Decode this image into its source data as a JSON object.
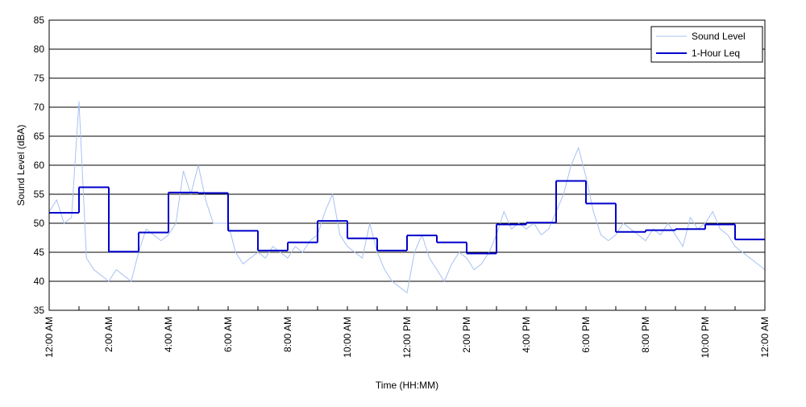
{
  "chart_data": {
    "type": "line",
    "ylabel": "Sound Level (dBA)",
    "xlabel": "Time (HH:MM)",
    "xlim": [
      0,
      24
    ],
    "ylim": [
      35,
      85
    ],
    "yticks": [
      35,
      40,
      45,
      50,
      55,
      60,
      65,
      70,
      75,
      80,
      85
    ],
    "xticks": [
      {
        "value": 0,
        "label": "12:00 AM"
      },
      {
        "value": 2,
        "label": "2:00 AM"
      },
      {
        "value": 4,
        "label": "4:00 AM"
      },
      {
        "value": 6,
        "label": "6:00 AM"
      },
      {
        "value": 8,
        "label": "8:00 AM"
      },
      {
        "value": 10,
        "label": "10:00 AM"
      },
      {
        "value": 12,
        "label": "12:00 PM"
      },
      {
        "value": 14,
        "label": "2:00 PM"
      },
      {
        "value": 16,
        "label": "4:00 PM"
      },
      {
        "value": 18,
        "label": "6:00 PM"
      },
      {
        "value": 20,
        "label": "8:00 PM"
      },
      {
        "value": 22,
        "label": "10:00 PM"
      },
      {
        "value": 24,
        "label": "12:00 AM"
      }
    ],
    "xminorticks": [
      1,
      3,
      5,
      7,
      9,
      11,
      13,
      15,
      17,
      19,
      21,
      23
    ],
    "grid": true,
    "legend": "upper right",
    "series": [
      {
        "name": "Sound Level",
        "color": "#a8c2f2",
        "step": false,
        "x": [
          0,
          0.25,
          0.5,
          0.75,
          1,
          1.25,
          1.5,
          1.75,
          2,
          2.25,
          2.5,
          2.75,
          3,
          3.25,
          3.5,
          3.75,
          4,
          4.25,
          4.5,
          4.75,
          5,
          5.25,
          5.5,
          5.75,
          6,
          6.25,
          6.5,
          6.75,
          7,
          7.25,
          7.5,
          7.75,
          8,
          8.25,
          8.5,
          8.75,
          9,
          9.25,
          9.5,
          9.75,
          10,
          10.25,
          10.5,
          10.75,
          11,
          11.25,
          11.5,
          11.75,
          12,
          12.25,
          12.5,
          12.75,
          13,
          13.25,
          13.5,
          13.75,
          14,
          14.25,
          14.5,
          14.75,
          15,
          15.25,
          15.5,
          15.75,
          16,
          16.25,
          16.5,
          16.75,
          17,
          17.25,
          17.5,
          17.75,
          18,
          18.25,
          18.5,
          18.75,
          19,
          19.25,
          19.5,
          19.75,
          20,
          20.25,
          20.5,
          20.75,
          21,
          21.25,
          21.5,
          21.75,
          22,
          22.25,
          22.5,
          22.75,
          23,
          23.25,
          23.5,
          23.75,
          24
        ],
        "values": [
          52,
          54,
          50,
          51,
          71,
          44,
          42,
          41,
          40,
          42,
          41,
          40,
          45,
          49,
          48,
          47,
          48,
          50,
          59,
          55,
          60,
          54,
          50,
          50,
          50,
          45,
          43,
          44,
          45,
          44,
          46,
          45,
          44,
          46,
          45,
          47,
          48,
          52,
          55,
          48,
          46,
          45,
          44,
          50,
          45,
          42,
          40,
          39,
          38,
          45,
          48,
          44,
          42,
          40,
          43,
          45,
          44,
          42,
          43,
          45,
          48,
          52,
          49,
          50,
          49,
          50,
          48,
          49,
          52,
          55,
          60,
          63,
          58,
          52,
          48,
          47,
          48,
          50,
          49,
          48,
          47,
          49,
          48,
          50,
          48,
          46,
          51,
          49,
          50,
          52,
          49,
          48,
          46,
          45,
          44,
          43,
          42
        ]
      },
      {
        "name": "1-Hour Leq",
        "color": "#0000cc",
        "step": true,
        "x": [
          0,
          1,
          2,
          3,
          4,
          5,
          6,
          7,
          8,
          9,
          10,
          11,
          12,
          13,
          14,
          15,
          16,
          17,
          18,
          19,
          20,
          21,
          22,
          23
        ],
        "values": [
          51.8,
          56.2,
          45.1,
          48.4,
          55.3,
          55.2,
          48.7,
          45.3,
          46.7,
          50.4,
          47.4,
          45.3,
          47.9,
          46.7,
          44.8,
          49.8,
          50.1,
          57.3,
          53.4,
          48.5,
          48.8,
          49.0,
          49.8,
          47.2
        ]
      }
    ]
  }
}
